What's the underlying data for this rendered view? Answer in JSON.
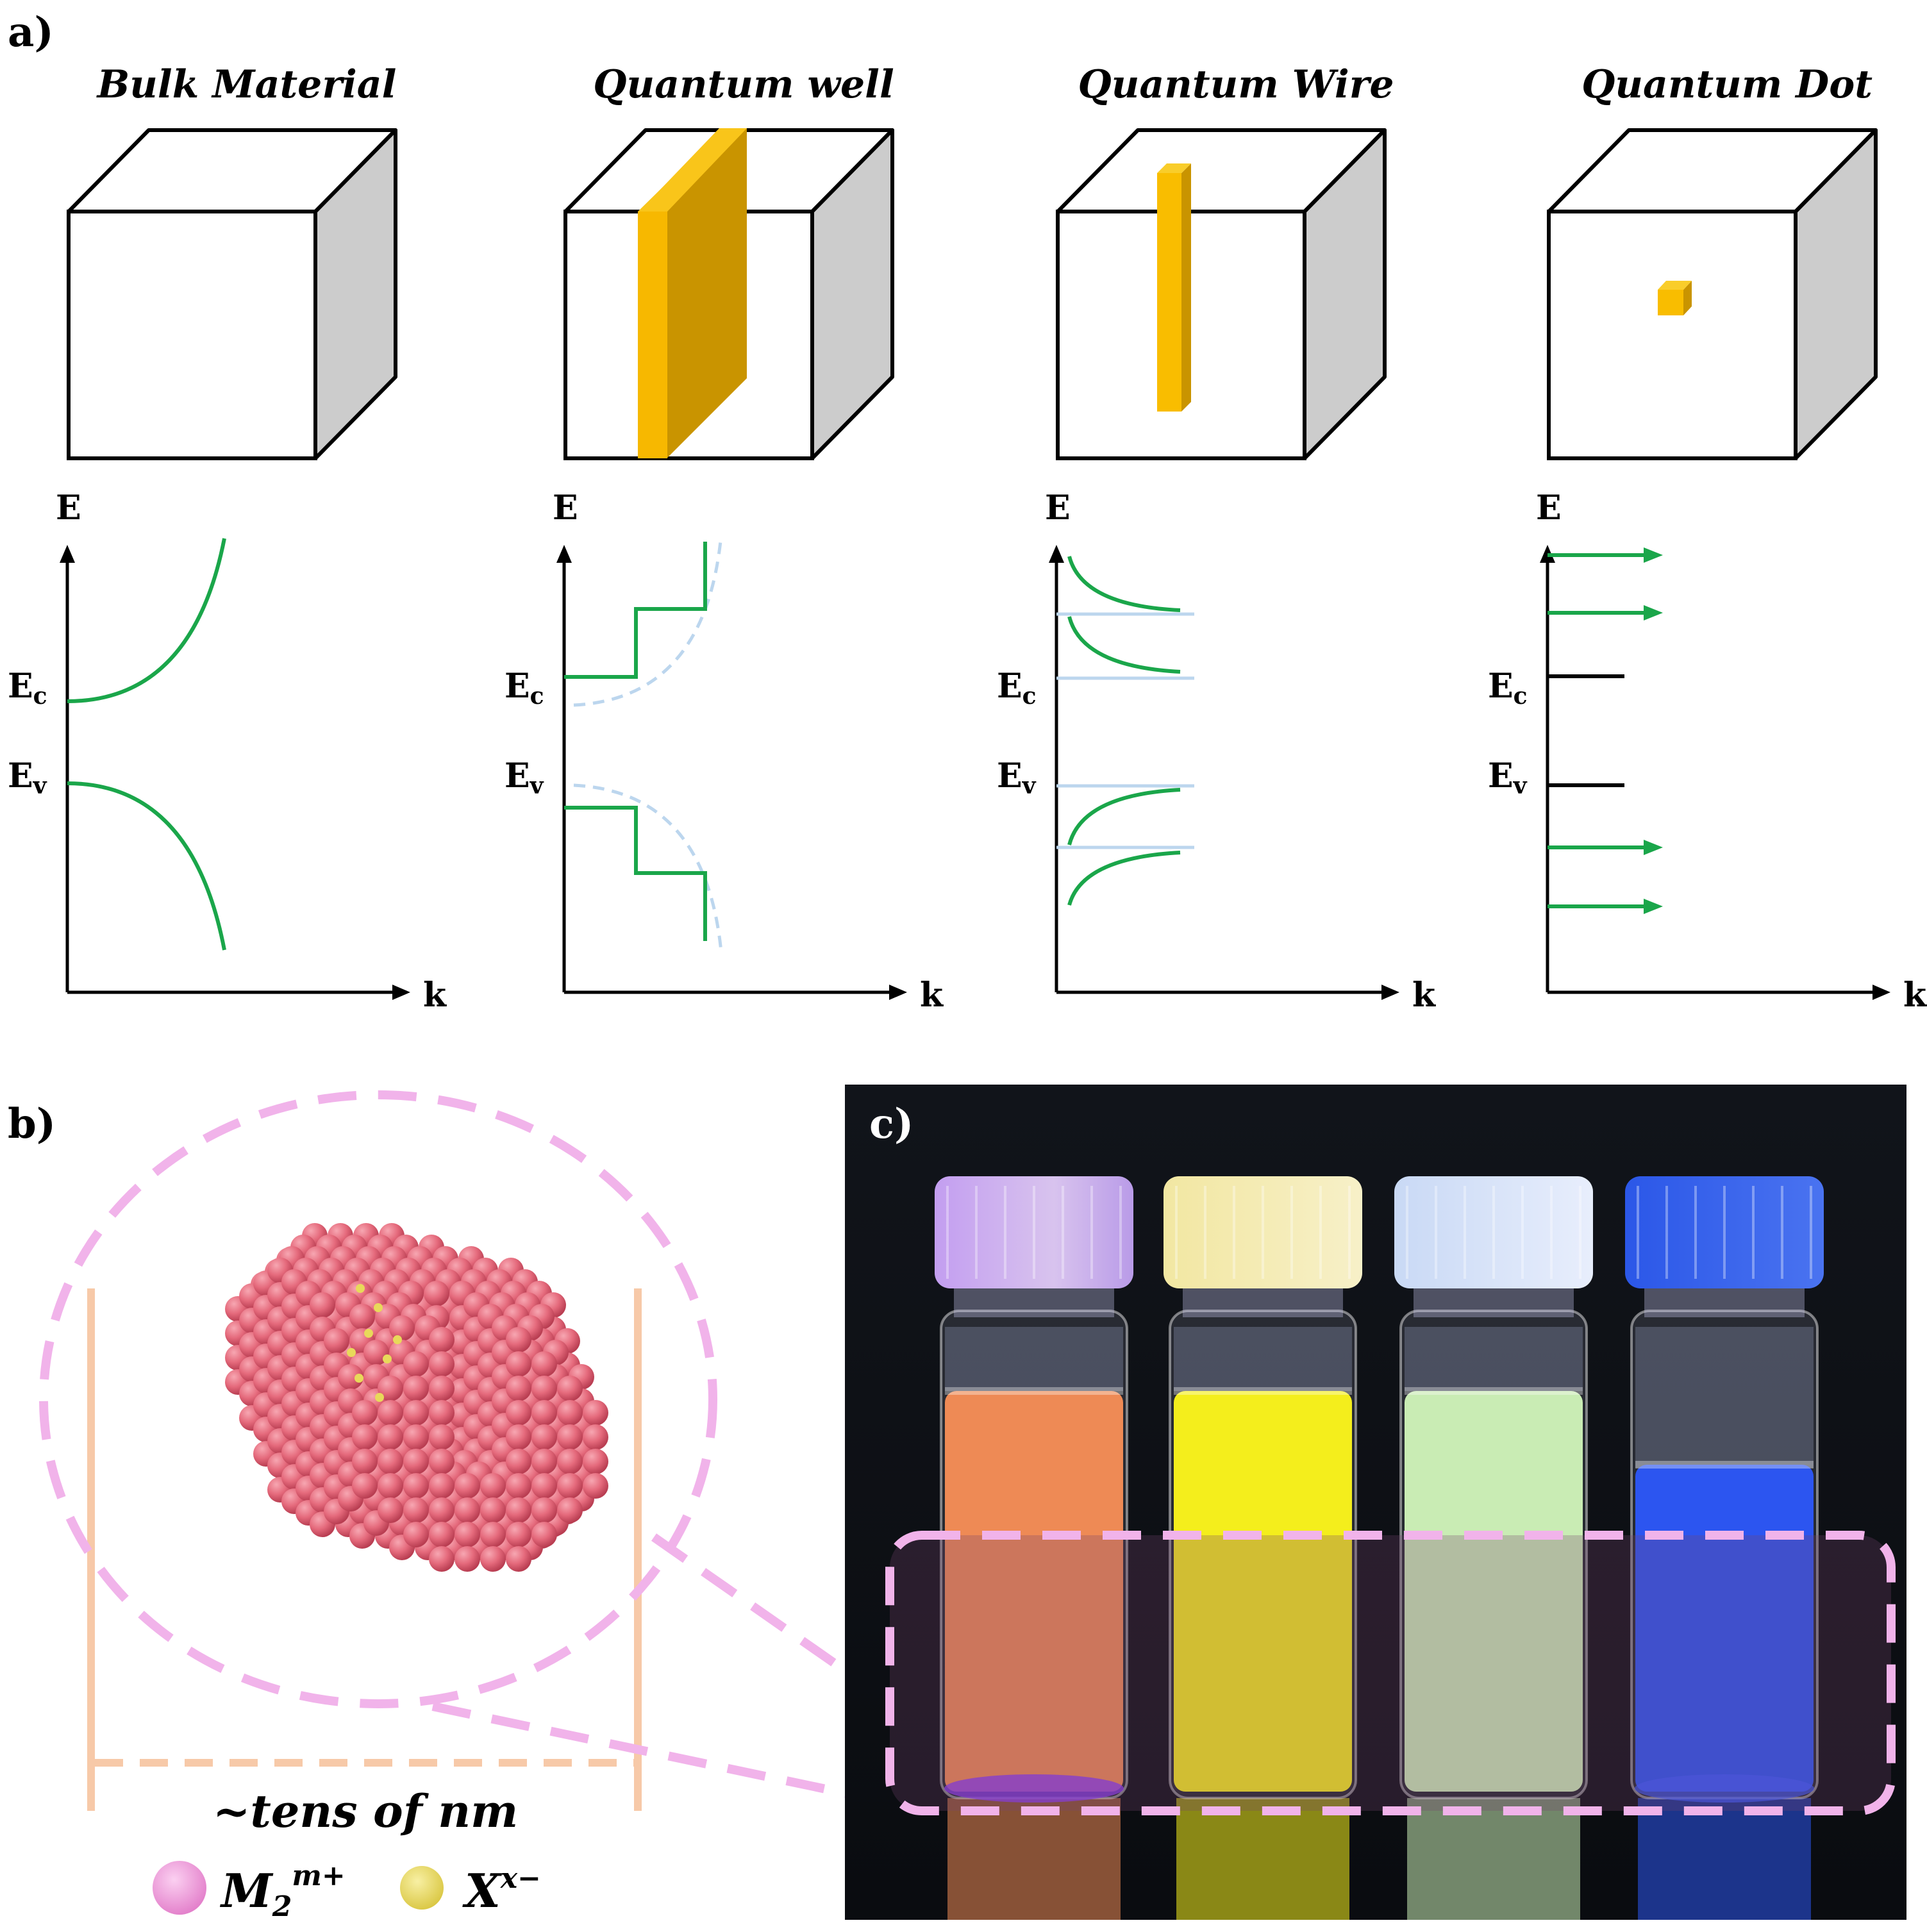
{
  "panel_a": {
    "label": "a)",
    "columns": [
      {
        "title": "Bulk Material"
      },
      {
        "title": "Quantum well"
      },
      {
        "title": "Quantum Wire"
      },
      {
        "title": "Quantum Dot"
      }
    ],
    "axis_y": "E",
    "axis_x": "k",
    "level_c_main": "E",
    "level_c_sub": "c",
    "level_v_main": "E",
    "level_v_sub": "v",
    "colors": {
      "curve": "#1aa64a",
      "nanostructure": "#f5b800",
      "cube_side": "#cccccc",
      "ghost": "#bcd6ee"
    }
  },
  "panel_b": {
    "label": "b)",
    "size_label": "~tens of nm",
    "legend_cation": "M",
    "legend_cation_sub": "2",
    "legend_cation_sup": "m+",
    "legend_anion": "X",
    "legend_anion_sup": "x−",
    "colors": {
      "cation": "#e5687a",
      "anion": "#e8d95a",
      "circle": "#f1b3ea",
      "bracket": "#f7c9a8"
    }
  },
  "panel_c": {
    "label": "c)",
    "vial_emission_colors": [
      "#ee8a55",
      "#f4ee1c",
      "#c9ecb4",
      "#2c55f0"
    ]
  }
}
